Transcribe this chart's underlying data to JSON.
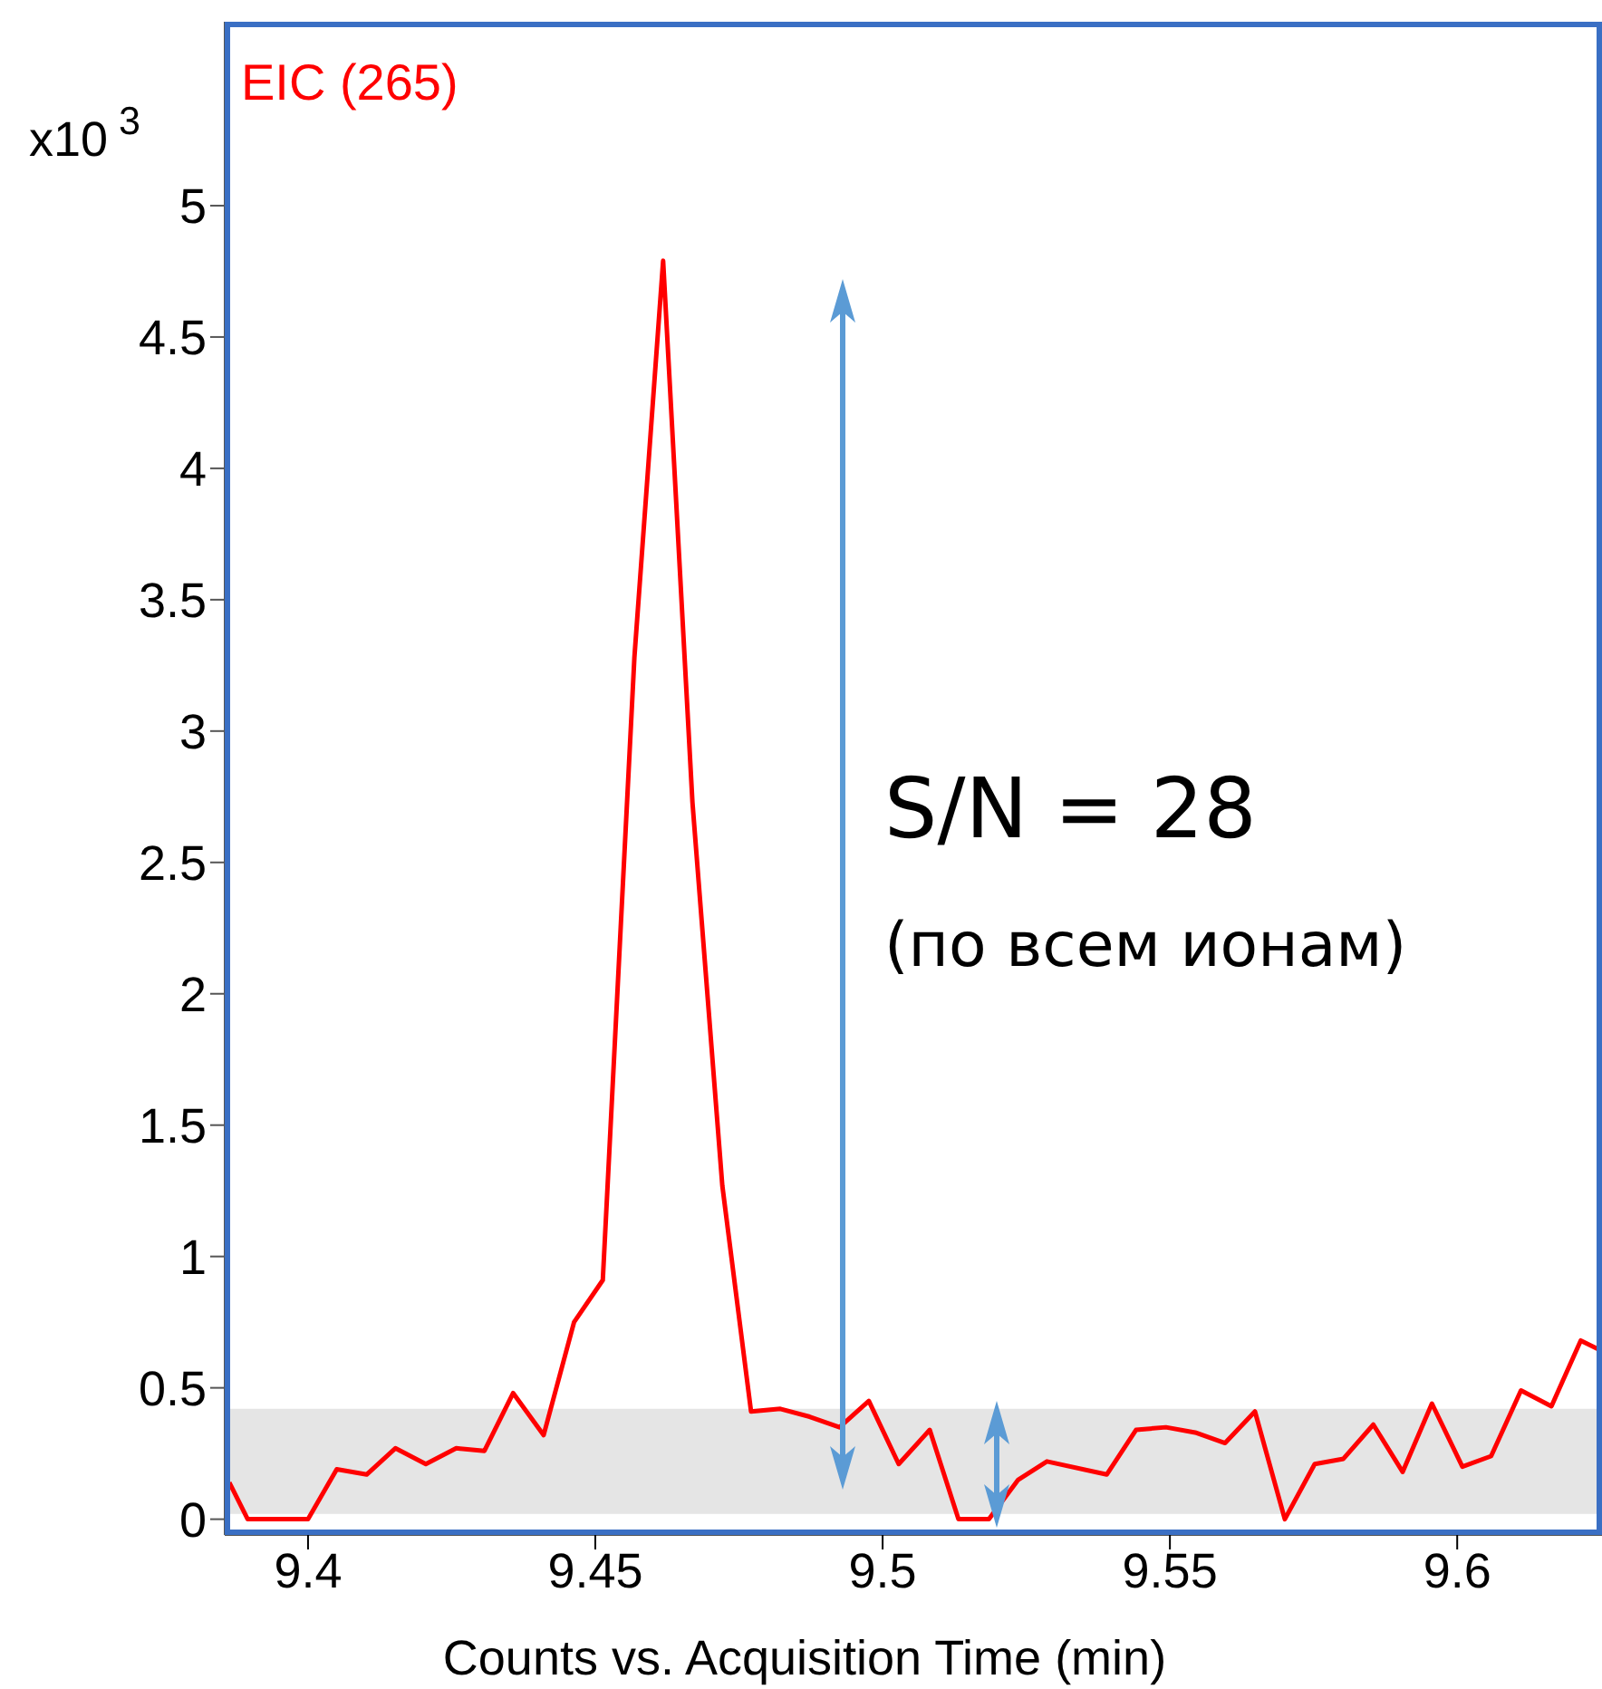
{
  "chart_data": {
    "type": "line",
    "ylabel": "x10$^{3}$",
    "xlabel": "Counts vs. Acquisition Time (min)",
    "legend": "top left",
    "x": [
      9.3863,
      9.3895,
      9.3946,
      9.4,
      9.405,
      9.4102,
      9.4152,
      9.4205,
      9.4258,
      9.4307,
      9.4357,
      9.441,
      9.4463,
      9.4513,
      9.4568,
      9.4618,
      9.4669,
      9.4721,
      9.4771,
      9.4822,
      9.4873,
      9.4925,
      9.4976,
      9.5028,
      9.5082,
      9.5132,
      9.5185,
      9.5236,
      9.5286,
      9.539,
      9.5441,
      9.5493,
      9.5544,
      9.5596,
      9.5648,
      9.57,
      9.5752,
      9.5802,
      9.5854,
      9.5905,
      9.5956,
      9.6009,
      9.6059,
      9.6111,
      9.6164,
      9.6215,
      9.6252
    ],
    "series": [
      {
        "name": "EIC (265)",
        "color": "#ff0000",
        "values": [
          0.14,
          0,
          0,
          0,
          0.19,
          0.17,
          0.27,
          0.21,
          0.27,
          0.26,
          0.48,
          0.32,
          0.75,
          0.91,
          3.28,
          4.79,
          2.73,
          1.27,
          0.41,
          0.42,
          0.39,
          0.35,
          0.45,
          0.21,
          0.34,
          0,
          0,
          0.15,
          0.22,
          0.17,
          0.34,
          0.35,
          0.33,
          0.29,
          0.41,
          0,
          0.21,
          0.23,
          0.36,
          0.18,
          0.44,
          0.2,
          0.24,
          0.49,
          0.43,
          0.68,
          0.64
        ]
      }
    ],
    "xlim": [
      9.3855,
      9.6252
    ],
    "xticks": [
      9.4,
      9.45,
      9.5,
      9.55,
      9.6
    ],
    "ylim": [
      -0.06,
      5.7
    ],
    "yticks": [
      0,
      0.5,
      1,
      1.5,
      2,
      2.5,
      3,
      3.5,
      4,
      4.5,
      5
    ],
    "bands": [
      {
        "axis": "y",
        "from": 0.02,
        "to": 0.42,
        "color": "#e5e5e5"
      }
    ],
    "annotations": [
      "S/N = 28",
      "(по всем ионам)"
    ]
  }
}
